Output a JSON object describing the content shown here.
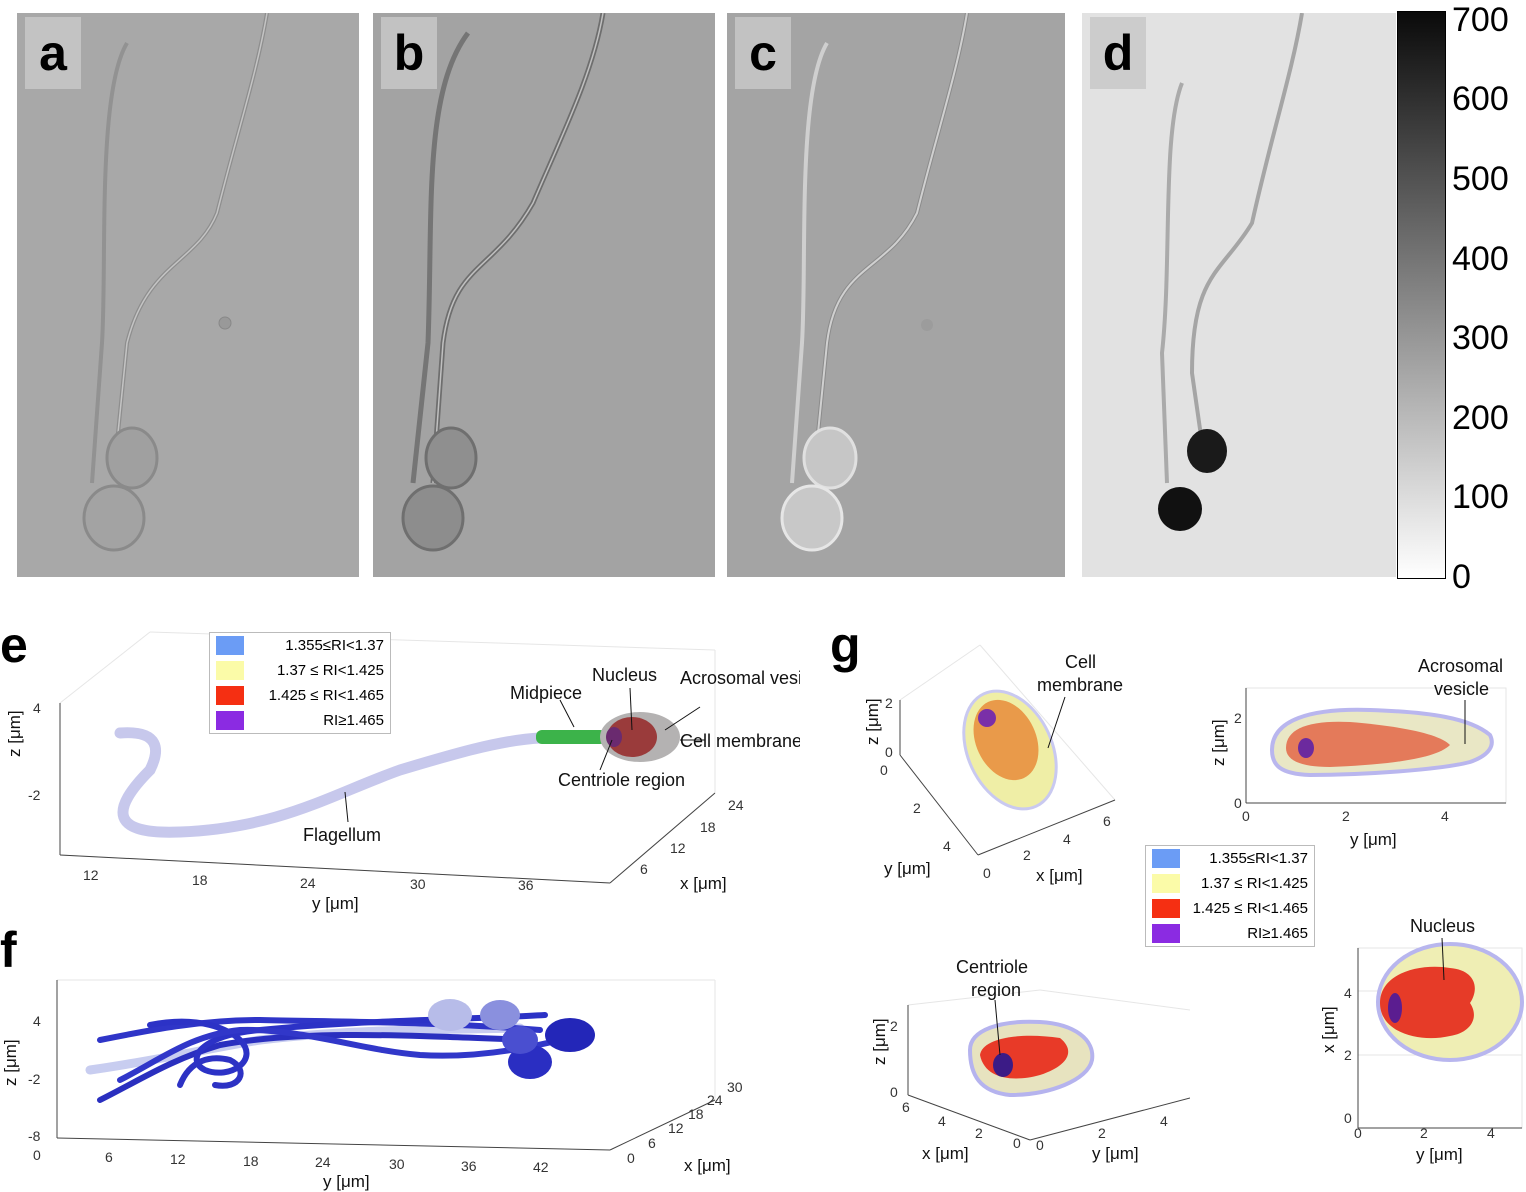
{
  "panels": {
    "a": "a",
    "b": "b",
    "c": "c",
    "d": "d",
    "e": "e",
    "f": "f",
    "g": "g"
  },
  "colorbar": {
    "ticks": [
      "700",
      "600",
      "500",
      "400",
      "300",
      "200",
      "100",
      "0"
    ],
    "range": [
      0,
      700
    ]
  },
  "legend": [
    {
      "label": "1.355≤RI<1.37",
      "color": "#6b9cf5"
    },
    {
      "label": "1.37 ≤ RI<1.425",
      "color": "#fbfba8"
    },
    {
      "label": "1.425 ≤ RI<1.465",
      "color": "#f52f12"
    },
    {
      "label": "RI≥1.465",
      "color": "#8b2be2"
    }
  ],
  "panel_e": {
    "annotations": {
      "midpiece": "Midpiece",
      "nucleus": "Nucleus",
      "acrosomal": "Acrosomal vesicle",
      "cell_membrane": "Cell membrane",
      "centriole": "Centriole region",
      "flagellum": "Flagellum"
    },
    "z_ticks": [
      "4",
      "-2"
    ],
    "y_ticks": [
      "12",
      "18",
      "24",
      "30",
      "36"
    ],
    "x_ticks": [
      "24",
      "18",
      "12",
      "6"
    ],
    "z_label": "z [μm]",
    "y_label": "y [μm]",
    "x_label": "x [μm]"
  },
  "panel_f": {
    "z_ticks": [
      "4",
      "-2",
      "-8"
    ],
    "y_ticks": [
      "0",
      "6",
      "12",
      "18",
      "24",
      "30",
      "36",
      "42"
    ],
    "x_ticks": [
      "30",
      "24",
      "18",
      "12",
      "6",
      "0"
    ],
    "z_label": "z [μm]",
    "y_label": "y [μm]",
    "x_label": "x [μm]"
  },
  "panel_g": {
    "tl": {
      "annotation": "Cell membrane",
      "z_ticks": [
        "2",
        "0",
        "0"
      ],
      "y_ticks": [
        "2",
        "4"
      ],
      "x_ticks": [
        "0",
        "2",
        "4",
        "6"
      ],
      "z_label": "z [μm]",
      "y_label": "y [μm]",
      "x_label": "x [μm]"
    },
    "tr": {
      "annotation": "Acrosomal vesicle",
      "z_ticks": [
        "2",
        "0"
      ],
      "y_ticks": [
        "0",
        "2",
        "4"
      ],
      "z_label": "z [μm]",
      "y_label": "y [μm]"
    },
    "bl": {
      "annotation": "Centriole region",
      "z_ticks": [
        "2",
        "0"
      ],
      "x_ticks": [
        "6",
        "4",
        "2",
        "0"
      ],
      "y_ticks": [
        "0",
        "2",
        "4"
      ],
      "z_label": "z [μm]",
      "x_label": "x [μm]",
      "y_label": "y [μm]"
    },
    "br": {
      "annotation": "Nucleus",
      "x_ticks": [
        "4",
        "2",
        "0"
      ],
      "y_ticks": [
        "0",
        "2",
        "4"
      ],
      "x_label": "x [μm]",
      "y_label": "y [μm]"
    }
  }
}
